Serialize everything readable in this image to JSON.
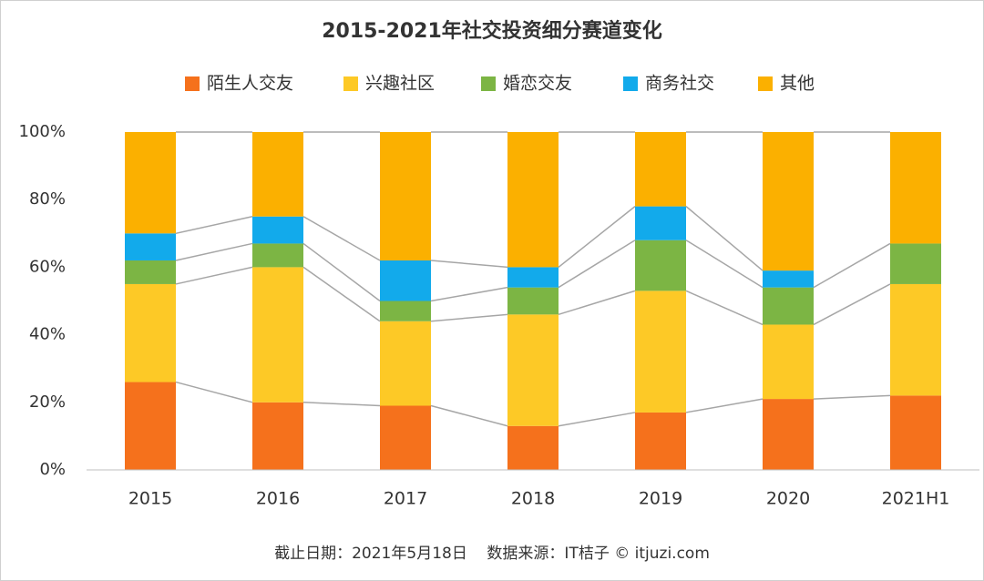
{
  "chart_data": {
    "type": "stacked_bar",
    "title": "2015-2021年社交投资细分赛道变化",
    "categories": [
      "2015",
      "2016",
      "2017",
      "2018",
      "2019",
      "2020",
      "2021H1"
    ],
    "series": [
      {
        "name": "陌生人交友",
        "color": "#f5711c",
        "values": [
          26,
          20,
          19,
          13,
          17,
          21,
          22
        ]
      },
      {
        "name": "兴趣社区",
        "color": "#fdc926",
        "values": [
          29,
          40,
          25,
          33,
          36,
          22,
          33
        ]
      },
      {
        "name": "婚恋交友",
        "color": "#7cb544",
        "values": [
          7,
          7,
          6,
          8,
          15,
          11,
          12
        ]
      },
      {
        "name": "商务社交",
        "color": "#12aaeb",
        "values": [
          8,
          8,
          12,
          6,
          10,
          5,
          0
        ]
      },
      {
        "name": "其他",
        "color": "#fbb000",
        "values": [
          30,
          25,
          38,
          40,
          22,
          41,
          33
        ]
      }
    ],
    "ylim": [
      0,
      100
    ],
    "yticks": [
      {
        "value": 0,
        "label": "0%"
      },
      {
        "value": 20,
        "label": "20%"
      },
      {
        "value": 40,
        "label": "40%"
      },
      {
        "value": 60,
        "label": "60%"
      },
      {
        "value": 80,
        "label": "80%"
      },
      {
        "value": 100,
        "label": "100%"
      }
    ],
    "legend": "top",
    "footer": "截止日期：2021年5月18日    数据来源：IT桔子 © itjuzi.com"
  }
}
